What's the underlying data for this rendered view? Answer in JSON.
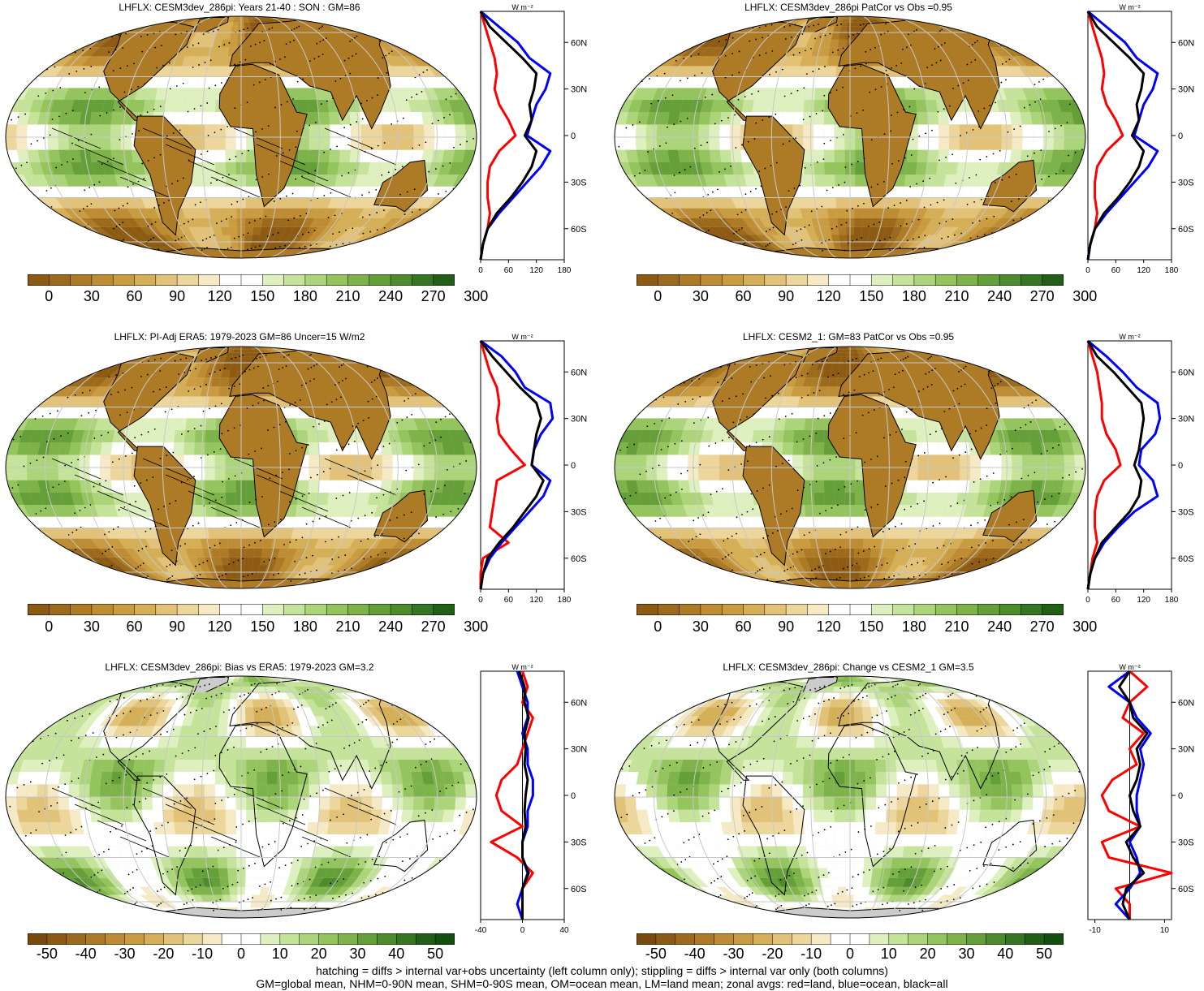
{
  "panels": [
    {
      "title": "LHFLX: CESM3dev_286pi: Years 21-40 : SON : GM=86",
      "kind": "abs",
      "hatch": true,
      "zonal_ticks": [
        "0",
        "60",
        "120",
        "180"
      ],
      "zonal_range": [
        0,
        180
      ]
    },
    {
      "title": "LHFLX: CESM3dev_286pi PatCor vs Obs =0.95",
      "kind": "abs",
      "hatch": false,
      "zonal_ticks": [
        "0",
        "60",
        "120",
        "180"
      ],
      "zonal_range": [
        0,
        180
      ]
    },
    {
      "title": "LHFLX: PI-Adj ERA5: 1979-2023 GM=86 Uncer=15 W/m2",
      "kind": "abs",
      "hatch": true,
      "zonal_ticks": [
        "0",
        "60",
        "120",
        "180"
      ],
      "zonal_range": [
        0,
        180
      ]
    },
    {
      "title": "LHFLX: CESM2_1: GM=83 PatCor vs Obs =0.95",
      "kind": "abs",
      "hatch": false,
      "zonal_ticks": [
        "0",
        "60",
        "120",
        "180"
      ],
      "zonal_range": [
        0,
        180
      ]
    },
    {
      "title": "LHFLX: CESM3dev_286pi: Bias vs ERA5: 1979-2023  GM=3.2",
      "kind": "diff",
      "hatch": true,
      "zonal_ticks": [
        "-40",
        "0",
        "40"
      ],
      "zonal_range": [
        -40,
        40
      ]
    },
    {
      "title": "LHFLX: CESM3dev_286pi: Change vs CESM2_1 GM=3.5",
      "kind": "diff",
      "hatch": false,
      "zonal_ticks": [
        "-10",
        "10"
      ],
      "zonal_range": [
        -12,
        12
      ]
    }
  ],
  "zonal_unit": "W m⁻²",
  "lat_labels": [
    "60N",
    "30N",
    "0",
    "30S",
    "60S"
  ],
  "colorbar_abs": [
    "0",
    "30",
    "60",
    "90",
    "120",
    "150",
    "180",
    "210",
    "240",
    "270",
    "300"
  ],
  "colorbar_diff": [
    "-50",
    "-40",
    "-30",
    "-20",
    "-10",
    "0",
    "10",
    "20",
    "30",
    "40",
    "50"
  ],
  "colors": {
    "abs": [
      "#8c5a12",
      "#9c6a1c",
      "#ad7a26",
      "#bd8c34",
      "#c99c42",
      "#d5ae58",
      "#e1c278",
      "#ecd69c",
      "#f5e9c6",
      "#ffffff",
      "#ffffff",
      "#dff0c0",
      "#c5e39a",
      "#acd47a",
      "#94c45e",
      "#7db34a",
      "#659f3a",
      "#4d8b2d",
      "#367522",
      "#215f17"
    ],
    "diff": [
      "#7a4a0c",
      "#8c5a12",
      "#9c6a1c",
      "#ad7a26",
      "#bd8c34",
      "#c99c42",
      "#d5ae58",
      "#e1c278",
      "#ecd69c",
      "#f5e9c6",
      "#ffffff",
      "#ffffff",
      "#dff0c0",
      "#c5e39a",
      "#acd47a",
      "#94c45e",
      "#7db34a",
      "#659f3a",
      "#4d8b2d",
      "#367522",
      "#215f17",
      "#135010"
    ],
    "land_mask": "#cccccc",
    "red": "#ff0000",
    "blue": "#0000ff",
    "black": "#000000"
  },
  "chart_data": [
    {
      "type": "line",
      "title": "LHFLX: CESM3dev_286pi: Years 21-40 : SON : GM=86",
      "xlabel": "W m-2",
      "xlim": [
        0,
        180
      ],
      "y": [
        80,
        70,
        60,
        50,
        40,
        30,
        20,
        10,
        0,
        -10,
        -20,
        -30,
        -40,
        -50,
        -60,
        -70,
        -80
      ],
      "series": [
        {
          "name": "land",
          "values": [
            0,
            10,
            20,
            30,
            35,
            30,
            40,
            60,
            75,
            40,
            20,
            15,
            15,
            20,
            15,
            5,
            0
          ]
        },
        {
          "name": "ocean",
          "values": [
            0,
            40,
            80,
            105,
            150,
            140,
            120,
            110,
            100,
            150,
            130,
            100,
            70,
            40,
            15,
            5,
            0
          ]
        },
        {
          "name": "all",
          "values": [
            0,
            20,
            55,
            90,
            120,
            115,
            105,
            110,
            95,
            120,
            110,
            90,
            65,
            35,
            15,
            5,
            0
          ]
        }
      ]
    },
    {
      "type": "line",
      "title": "LHFLX: CESM3dev_286pi PatCor vs Obs =0.95",
      "xlabel": "W m-2",
      "xlim": [
        0,
        180
      ],
      "y": [
        80,
        70,
        60,
        50,
        40,
        30,
        20,
        10,
        0,
        -10,
        -20,
        -30,
        -40,
        -50,
        -60,
        -70,
        -80
      ],
      "series": [
        {
          "name": "land",
          "values": [
            0,
            10,
            20,
            30,
            35,
            30,
            40,
            60,
            75,
            40,
            20,
            15,
            15,
            20,
            15,
            5,
            0
          ]
        },
        {
          "name": "ocean",
          "values": [
            0,
            40,
            80,
            105,
            150,
            140,
            120,
            110,
            100,
            150,
            130,
            100,
            70,
            40,
            15,
            5,
            0
          ]
        },
        {
          "name": "all",
          "values": [
            0,
            20,
            55,
            90,
            120,
            115,
            105,
            110,
            95,
            120,
            110,
            90,
            65,
            35,
            15,
            5,
            0
          ]
        }
      ]
    },
    {
      "type": "line",
      "title": "LHFLX: PI-Adj ERA5: 1979-2023 GM=86 Uncer=15 W/m2",
      "xlabel": "W m-2",
      "xlim": [
        0,
        180
      ],
      "y": [
        80,
        70,
        60,
        50,
        40,
        30,
        20,
        10,
        0,
        -10,
        -20,
        -30,
        -40,
        -50,
        -60,
        -70,
        -80
      ],
      "series": [
        {
          "name": "land",
          "values": [
            0,
            10,
            20,
            35,
            40,
            35,
            40,
            65,
            95,
            35,
            30,
            25,
            20,
            60,
            5,
            0,
            0
          ]
        },
        {
          "name": "ocean",
          "values": [
            0,
            45,
            75,
            95,
            150,
            155,
            130,
            115,
            110,
            150,
            135,
            105,
            75,
            45,
            20,
            5,
            0
          ]
        },
        {
          "name": "all",
          "values": [
            0,
            25,
            55,
            85,
            120,
            130,
            120,
            115,
            110,
            135,
            120,
            95,
            70,
            40,
            15,
            5,
            0
          ]
        }
      ]
    },
    {
      "type": "line",
      "title": "LHFLX: CESM2_1: GM=83 PatCor vs Obs =0.95",
      "xlabel": "W m-2",
      "xlim": [
        0,
        180
      ],
      "y": [
        80,
        70,
        60,
        50,
        40,
        30,
        20,
        10,
        0,
        -10,
        -20,
        -30,
        -40,
        -50,
        -60,
        -70,
        -80
      ],
      "series": [
        {
          "name": "land",
          "values": [
            0,
            10,
            20,
            25,
            30,
            30,
            40,
            60,
            70,
            35,
            20,
            15,
            15,
            20,
            10,
            5,
            0
          ]
        },
        {
          "name": "ocean",
          "values": [
            0,
            40,
            75,
            105,
            150,
            155,
            145,
            115,
            110,
            140,
            150,
            100,
            65,
            35,
            15,
            5,
            0
          ]
        },
        {
          "name": "all",
          "values": [
            0,
            20,
            55,
            85,
            115,
            120,
            115,
            110,
            100,
            115,
            110,
            90,
            60,
            30,
            15,
            5,
            0
          ]
        }
      ]
    },
    {
      "type": "line",
      "title": "LHFLX: CESM3dev_286pi: Bias vs ERA5: 1979-2023  GM=3.2",
      "xlabel": "W m-2",
      "xlim": [
        -40,
        40
      ],
      "y": [
        80,
        70,
        60,
        50,
        40,
        30,
        20,
        10,
        0,
        -10,
        -20,
        -30,
        -40,
        -50,
        -60,
        -70,
        -80
      ],
      "series": [
        {
          "name": "land",
          "values": [
            0,
            5,
            0,
            10,
            5,
            0,
            -5,
            -20,
            -25,
            -20,
            0,
            -30,
            -5,
            10,
            0,
            0,
            0
          ]
        },
        {
          "name": "ocean",
          "values": [
            -5,
            0,
            5,
            5,
            0,
            5,
            5,
            10,
            10,
            5,
            5,
            0,
            0,
            5,
            0,
            -5,
            0
          ]
        },
        {
          "name": "all",
          "values": [
            -3,
            2,
            2,
            6,
            2,
            3,
            2,
            5,
            3,
            2,
            3,
            0,
            0,
            6,
            0,
            0,
            0
          ]
        }
      ]
    },
    {
      "type": "line",
      "title": "LHFLX: CESM3dev_286pi: Change vs CESM2_1 GM=3.5",
      "xlabel": "W m-2",
      "xlim": [
        -12,
        12
      ],
      "y": [
        80,
        70,
        60,
        50,
        40,
        30,
        20,
        10,
        0,
        -10,
        -20,
        -30,
        -40,
        -50,
        -60,
        -70,
        -80
      ],
      "series": [
        {
          "name": "land",
          "values": [
            0,
            5,
            0,
            -2,
            4,
            0,
            2,
            -5,
            -8,
            -6,
            3,
            -8,
            -6,
            12,
            -4,
            0,
            0
          ]
        },
        {
          "name": "ocean",
          "values": [
            0,
            -6,
            0,
            2,
            6,
            3,
            4,
            3,
            2,
            2,
            3,
            0,
            2,
            3,
            0,
            -4,
            0
          ]
        },
        {
          "name": "all",
          "values": [
            0,
            -3,
            0,
            1,
            5,
            2,
            3,
            2,
            0,
            1,
            3,
            -1,
            1,
            4,
            -1,
            -2,
            0
          ]
        }
      ]
    }
  ],
  "footer": {
    "line1": "hatching = diffs > internal var+obs uncertainty (left column only); stippling = diffs > internal var only (both columns)",
    "line2": "GM=global mean, NHM=0-90N mean, SHM=0-90S mean, OM=ocean mean, LM=land mean; zonal avgs: red=land, blue=ocean, black=all"
  }
}
